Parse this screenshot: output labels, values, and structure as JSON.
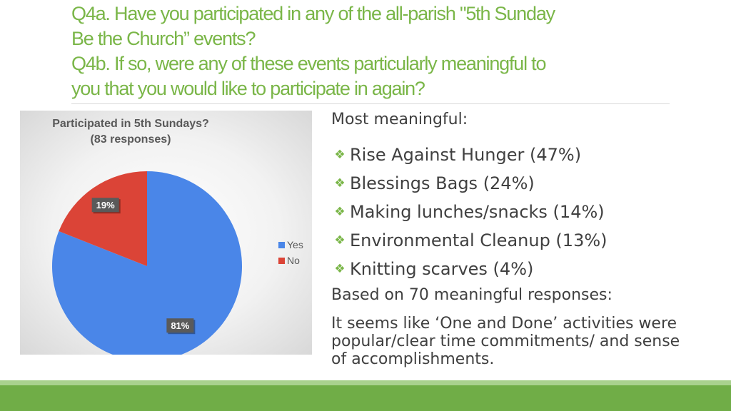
{
  "slide": {
    "title_lines": [
      "Q4a. Have you participated in any of the all-parish \"5th Sunday",
      "Be the Church” events?",
      "Q4b. If so, were any of these events particularly meaningful to",
      "you that you would like to participate in again?"
    ],
    "title_color": "#7ab648"
  },
  "chart_data": {
    "type": "pie",
    "title": "Participated in 5th Sundays?",
    "subtitle": "(83 responses)",
    "categories": [
      "Yes",
      "No"
    ],
    "values": [
      81,
      19
    ],
    "data_labels": [
      "81%",
      "19%"
    ],
    "colors": [
      "#4a86e8",
      "#db4437"
    ],
    "legend_position": "right"
  },
  "right_panel": {
    "heading": "Most meaningful:",
    "bullet_icon": "diamond-cluster-icon",
    "bullets": [
      "Rise Against Hunger (47%)",
      "Blessings Bags (24%)",
      "Making lunches/snacks (14%)",
      "Environmental Cleanup (13%)",
      "Knitting scarves (4%)"
    ],
    "based_on": "Based on 70 meaningful responses:",
    "note": "It seems like ‘One and Done’ activities were popular/clear time commitments/ and sense of accomplishments."
  },
  "footer": {
    "band_color_light": "#a9d18e",
    "band_color_dark": "#70ad47"
  }
}
